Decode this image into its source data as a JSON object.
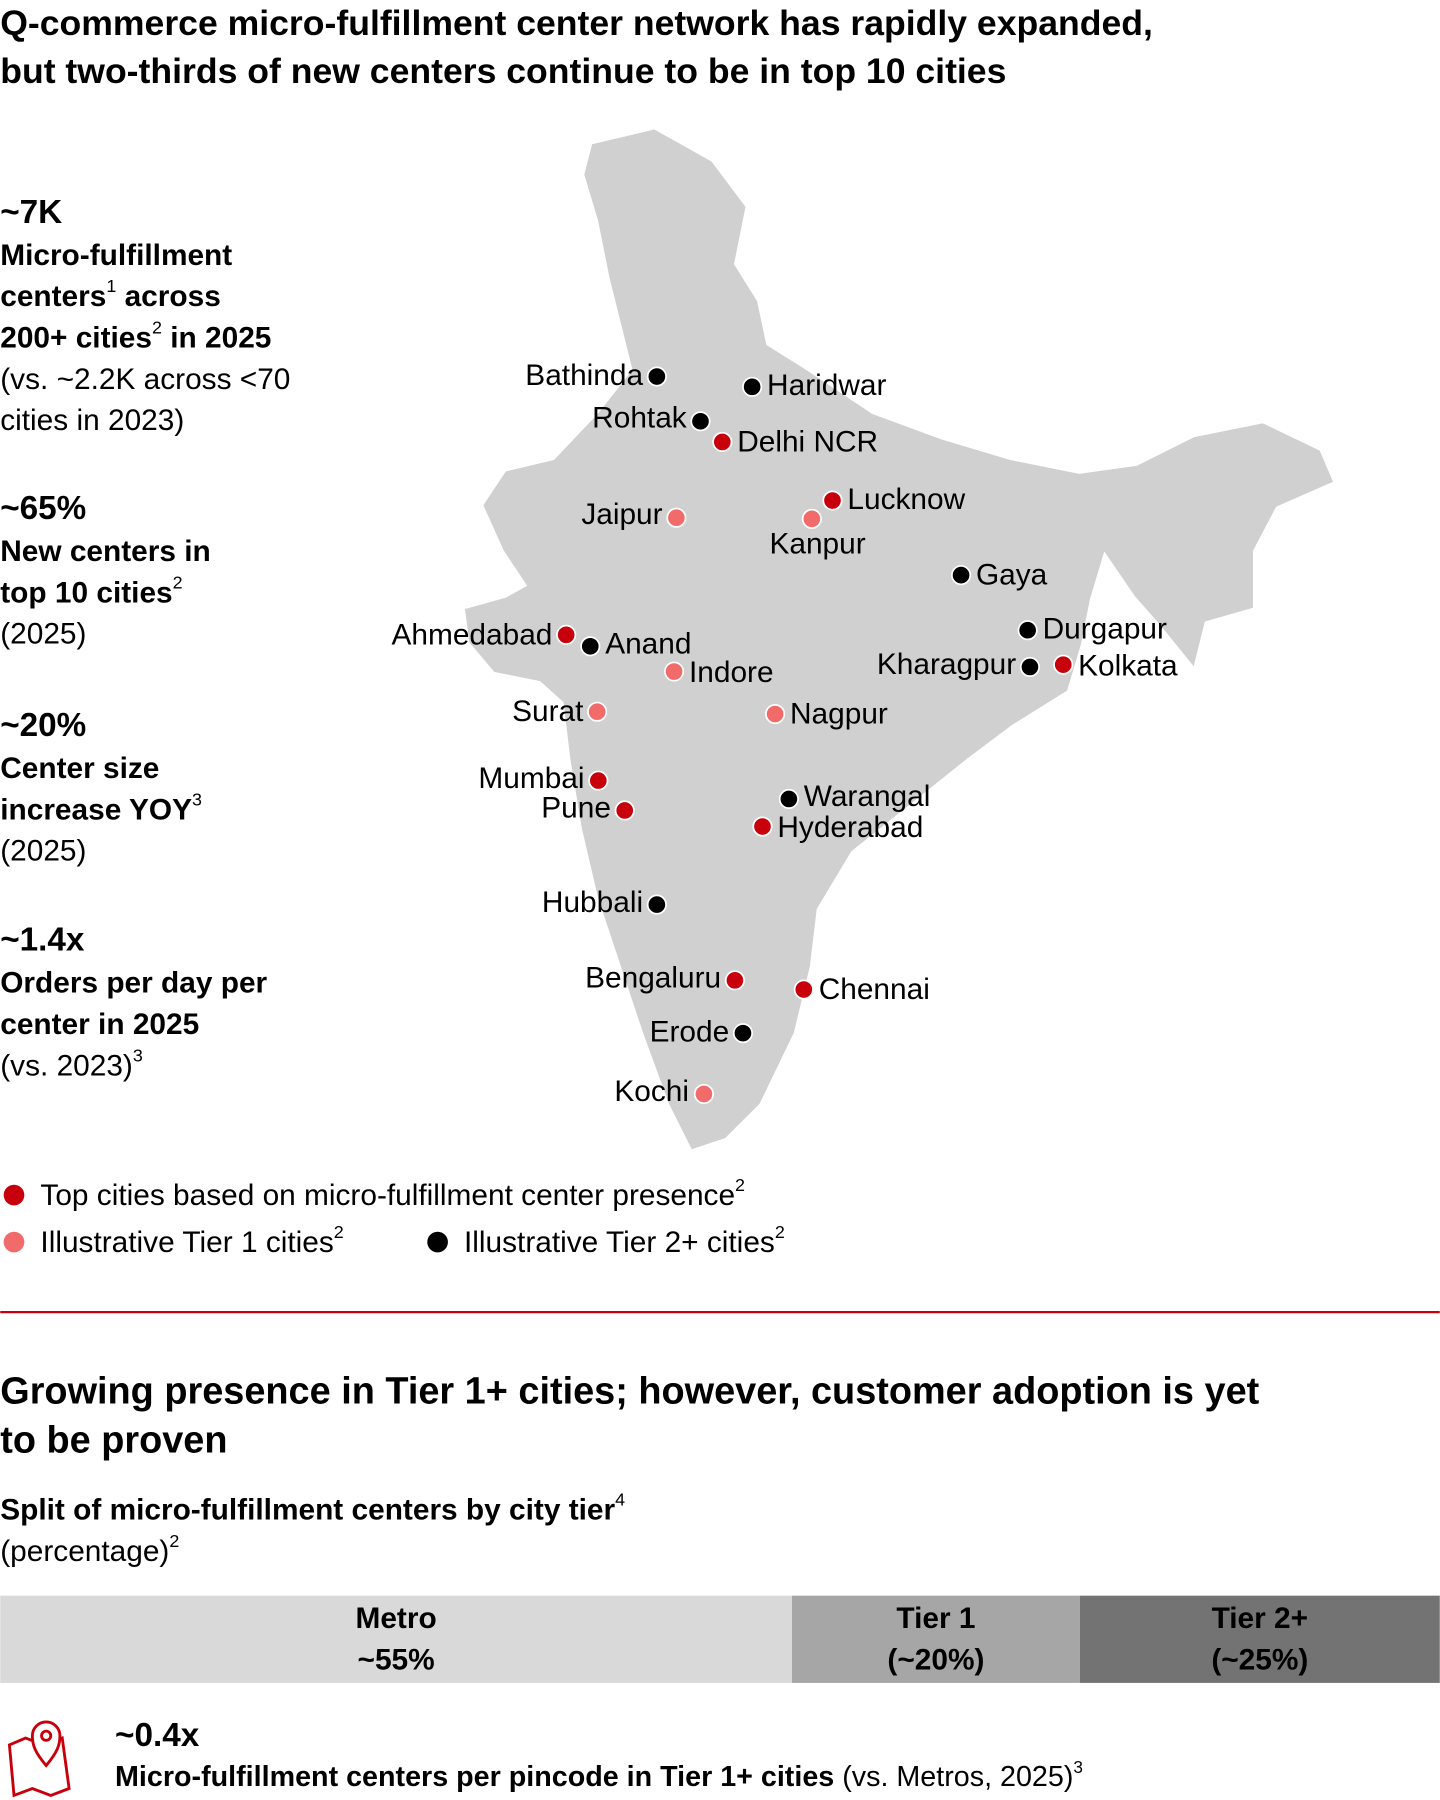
{
  "title_lines": [
    "Q-commerce micro-fulfillment center network has rapidly expanded,",
    "but two-thirds of new centers continue to be in top 10 cities"
  ],
  "stats": [
    {
      "value": "~7K",
      "lines": [
        [
          {
            "text": "Micro-fulfillment",
            "style": "bold"
          }
        ],
        [
          {
            "text": "centers",
            "style": "bold"
          },
          {
            "text": "1",
            "style": "sup"
          },
          {
            "text": " across",
            "style": "bold"
          }
        ],
        [
          {
            "text": "200+ cities",
            "style": "bold"
          },
          {
            "text": "2",
            "style": "sup"
          },
          {
            "text": " in 2025",
            "style": "bold"
          }
        ],
        [
          {
            "text": "(vs. ~2.2K across <70",
            "style": "normal"
          }
        ],
        [
          {
            "text": "cities in 2023)",
            "style": "normal"
          }
        ]
      ]
    },
    {
      "value": "~65%",
      "lines": [
        [
          {
            "text": "New centers in",
            "style": "bold"
          }
        ],
        [
          {
            "text": "top 10 cities",
            "style": "bold"
          },
          {
            "text": "2",
            "style": "sup"
          }
        ],
        [
          {
            "text": "(2025)",
            "style": "normal"
          }
        ]
      ]
    },
    {
      "value": "~20%",
      "lines": [
        [
          {
            "text": "Center size",
            "style": "bold"
          }
        ],
        [
          {
            "text": "increase YOY",
            "style": "bold"
          },
          {
            "text": "3",
            "style": "sup"
          }
        ],
        [
          {
            "text": "(2025)",
            "style": "normal"
          }
        ]
      ]
    },
    {
      "value": "~1.4x",
      "lines": [
        [
          {
            "text": "Orders per day per",
            "style": "bold"
          }
        ],
        [
          {
            "text": "center in 2025",
            "style": "bold"
          }
        ],
        [
          {
            "text": "(vs. 2023)",
            "style": "normal"
          },
          {
            "text": "3",
            "style": "sup"
          }
        ]
      ]
    }
  ],
  "map": {
    "cities": [
      {
        "label": "Bathinda",
        "color": "#000000"
      },
      {
        "label": "Haridwar",
        "color": "#000000"
      },
      {
        "label": "Rohtak",
        "color": "#000000"
      },
      {
        "label": "Delhi NCR",
        "color": "#c8000b"
      },
      {
        "label": "Jaipur",
        "color": "#f26b6b"
      },
      {
        "label": "Lucknow",
        "color": "#c8000b"
      },
      {
        "label": "Kanpur",
        "color": "#f26b6b"
      },
      {
        "label": "Gaya",
        "color": "#000000"
      },
      {
        "label": "Ahmedabad",
        "color": "#c8000b"
      },
      {
        "label": "Anand",
        "color": "#000000"
      },
      {
        "label": "Indore",
        "color": "#f26b6b"
      },
      {
        "label": "Durgapur",
        "color": "#000000"
      },
      {
        "label": "Kharagpur",
        "color": "#000000"
      },
      {
        "label": "Kolkata",
        "color": "#c8000b"
      },
      {
        "label": "Surat",
        "color": "#f26b6b"
      },
      {
        "label": "Nagpur",
        "color": "#f26b6b"
      },
      {
        "label": "Mumbai",
        "color": "#c8000b"
      },
      {
        "label": "Pune",
        "color": "#c8000b"
      },
      {
        "label": "Warangal",
        "color": "#000000"
      },
      {
        "label": "Hyderabad",
        "color": "#c8000b"
      },
      {
        "label": "Hubbali",
        "color": "#000000"
      },
      {
        "label": "Bengaluru",
        "color": "#c8000b"
      },
      {
        "label": "Chennai",
        "color": "#c8000b"
      },
      {
        "label": "Erode",
        "color": "#000000"
      },
      {
        "label": "Kochi",
        "color": "#f26b6b"
      }
    ],
    "legend": [
      {
        "color": "#c8000b",
        "runs": [
          {
            "text": "Top cities based on micro-fulfillment center presence",
            "style": "normal"
          },
          {
            "text": "2",
            "style": "sup"
          }
        ]
      },
      {
        "color": "#f26b6b",
        "runs": [
          {
            "text": "Illustrative Tier 1 cities",
            "style": "normal"
          },
          {
            "text": "2",
            "style": "sup"
          }
        ]
      },
      {
        "color": "#000000",
        "runs": [
          {
            "text": "Illustrative Tier 2+ cities",
            "style": "normal"
          },
          {
            "text": "2",
            "style": "sup"
          }
        ]
      }
    ]
  },
  "section2": {
    "title_lines": [
      "Growing presence in Tier 1+ cities; however, customer adoption is yet",
      "to be proven"
    ],
    "footer": {
      "value": "~0.4x",
      "runs": [
        {
          "text": "Micro-fulfillment centers per pincode in Tier 1+ cities",
          "style": "bold"
        },
        {
          "text": " (vs. Metros, 2025)",
          "style": "normal"
        },
        {
          "text": "3",
          "style": "sup"
        }
      ]
    }
  },
  "chart_data": {
    "type": "stacked-bar",
    "title": [
      {
        "text": "Split of micro-fulfillment centers by city tier",
        "style": "bold"
      },
      {
        "text": "4",
        "style": "sup"
      }
    ],
    "subtitle": [
      {
        "text": "(percentage)",
        "style": "normal"
      },
      {
        "text": "2",
        "style": "sup"
      }
    ],
    "xlim": [
      0,
      100
    ],
    "series": [
      {
        "name": "Metro",
        "color": "#d9d9d9",
        "label_color": "#000000",
        "values": [
          55
        ],
        "value_labels": [
          "~55%"
        ]
      },
      {
        "name": "Tier 1",
        "color": "#a6a6a6",
        "label_color": "#ffffff",
        "values": [
          20
        ],
        "value_labels": [
          "(~20%)"
        ]
      },
      {
        "name": "Tier 2+",
        "color": "#737373",
        "label_color": "#ffffff",
        "values": [
          25
        ],
        "value_labels": [
          "(~25%)"
        ]
      }
    ]
  }
}
